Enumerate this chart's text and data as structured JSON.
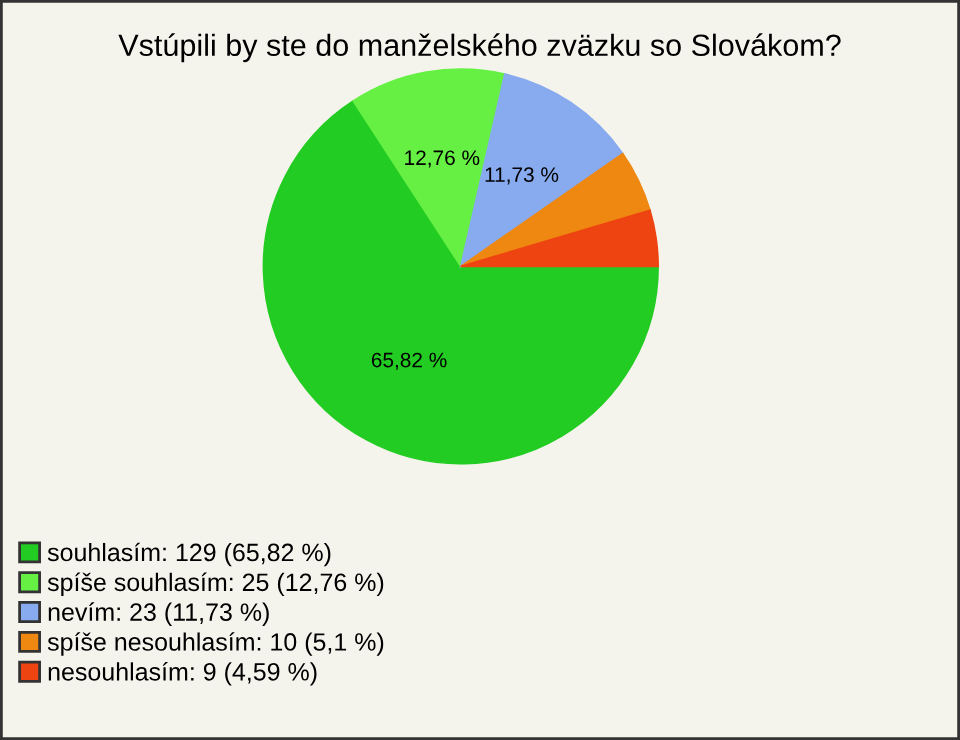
{
  "chart_data": {
    "type": "pie",
    "title": "Vstúpili by ste do manželského zväzku so Slovákom?",
    "categories": [
      "souhlasím: 129 (65,82 %)",
      "spíše souhlasím: 25 (12,76 %)",
      "nevím: 23 (11,73 %)",
      "spíše nesouhlasím: 10 (5,1 %)",
      "nesouhlasím: 9 (4,59 %)"
    ],
    "values": [
      65.82,
      12.76,
      11.73,
      5.1,
      4.59
    ],
    "colors": [
      "#22cc22",
      "#66f044",
      "#88aaee",
      "#ee8811",
      "#ee4411"
    ],
    "value_labels": [
      "65,82 %",
      "12,76 %",
      "11,73 %",
      null,
      null
    ],
    "legend": "bottom left"
  }
}
